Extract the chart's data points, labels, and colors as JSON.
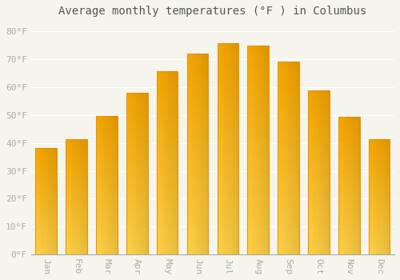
{
  "title": "Average monthly temperatures (°F ) in Columbus",
  "months": [
    "Jan",
    "Feb",
    "Mar",
    "Apr",
    "May",
    "Jun",
    "Jul",
    "Aug",
    "Sep",
    "Oct",
    "Nov",
    "Dec"
  ],
  "values": [
    38.3,
    41.4,
    49.8,
    58.1,
    65.7,
    72.2,
    75.7,
    75.0,
    69.1,
    58.8,
    49.3,
    41.4
  ],
  "bar_color_bottom": "#FFD147",
  "bar_color_top": "#F5A500",
  "bar_color_left": "#FFD147",
  "bar_color_right": "#E08800",
  "bar_edge_color": "#E8950A",
  "background_color": "#F5F5EE",
  "grid_color": "#FFFFFF",
  "ytick_labels": [
    "0°F",
    "10°F",
    "20°F",
    "30°F",
    "40°F",
    "50°F",
    "60°F",
    "70°F",
    "80°F"
  ],
  "ytick_values": [
    0,
    10,
    20,
    30,
    40,
    50,
    60,
    70,
    80
  ],
  "ylim": [
    0,
    83
  ],
  "title_fontsize": 10,
  "tick_fontsize": 8,
  "tick_color": "#AAAAAA",
  "title_color": "#555555"
}
